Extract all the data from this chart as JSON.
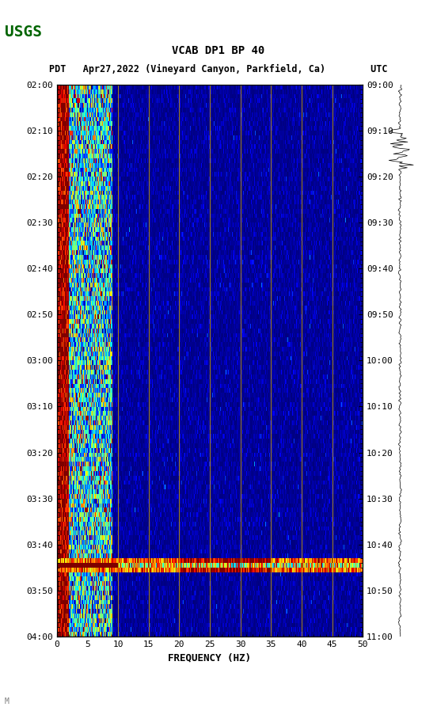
{
  "title_line1": "VCAB DP1 BP 40",
  "title_line2": "PDT   Apr27,2022 (Vineyard Canyon, Parkfield, Ca)        UTC",
  "xlabel": "FREQUENCY (HZ)",
  "ylabel_left_times": [
    "02:00",
    "02:10",
    "02:20",
    "02:30",
    "02:40",
    "02:50",
    "03:00",
    "03:10",
    "03:20",
    "03:30",
    "03:40",
    "03:50",
    "04:00"
  ],
  "ylabel_right_times": [
    "09:00",
    "09:10",
    "09:20",
    "09:30",
    "09:40",
    "09:50",
    "10:00",
    "10:10",
    "10:20",
    "10:30",
    "10:40",
    "10:50",
    "11:00"
  ],
  "freq_min": 0,
  "freq_max": 50,
  "freq_ticks": [
    0,
    5,
    10,
    15,
    20,
    25,
    30,
    35,
    40,
    45,
    50
  ],
  "time_steps": 120,
  "freq_steps": 500,
  "background_color": "#ffffff",
  "spectrogram_xlim": [
    0,
    50
  ],
  "vertical_lines_freq": [
    10,
    15,
    20,
    25,
    30,
    35,
    40,
    45
  ],
  "vline_color": "#c8a000",
  "noise_seed": 42,
  "fig_width": 5.52,
  "fig_height": 8.93,
  "dpi": 100
}
